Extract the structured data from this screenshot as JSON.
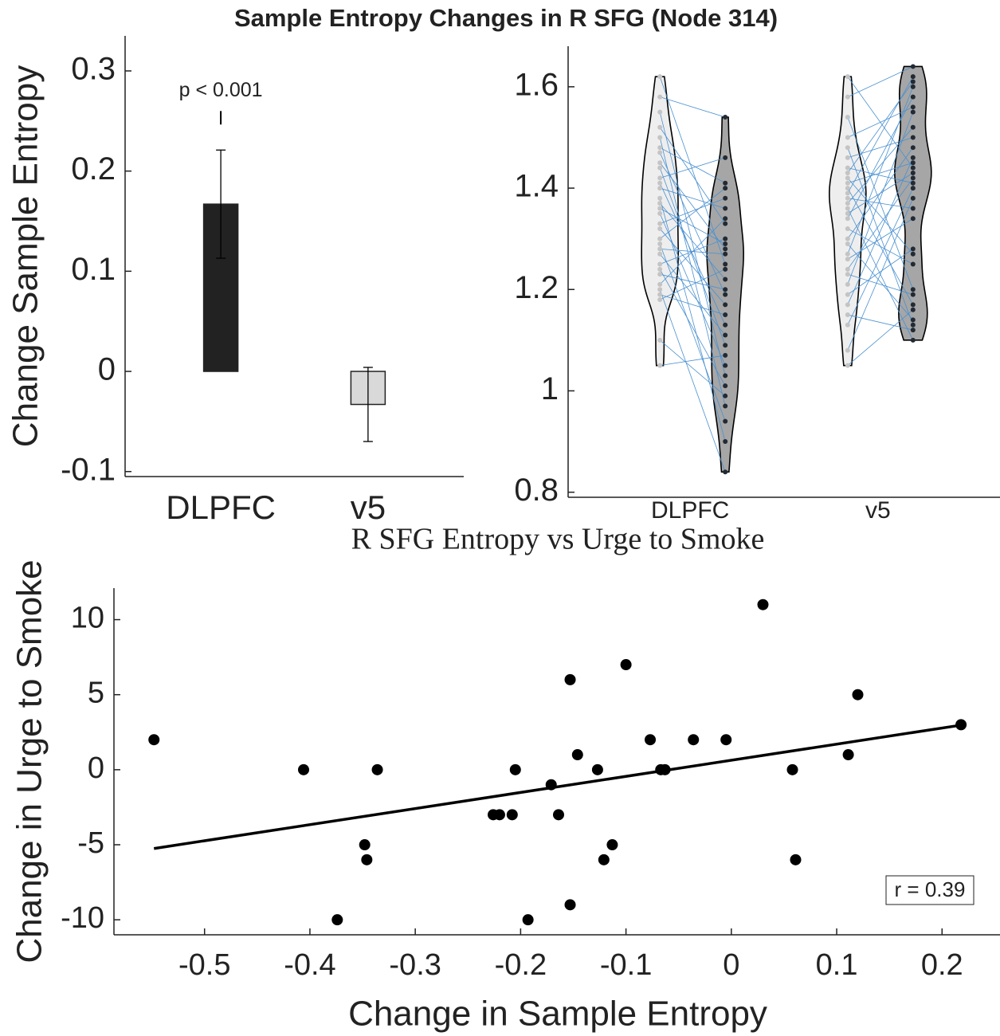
{
  "chart_data": [
    {
      "type": "bar",
      "title": "Sample Entropy Changes in R SFG (Node 314)",
      "ylabel": "Change Sample Entropy",
      "categories": [
        "DLPFC",
        "v5"
      ],
      "values": [
        0.167,
        -0.033
      ],
      "errors": [
        0.054,
        0.037
      ],
      "colors": [
        "#222222",
        "#d9d9d9"
      ],
      "annotation": "p < 0.001",
      "ylim": [
        -0.105,
        0.335
      ],
      "yticks": [
        0.3,
        0.2,
        0.1,
        0,
        -0.1
      ]
    },
    {
      "type": "violin",
      "categories": [
        "DLPFC",
        "v5"
      ],
      "series": [
        {
          "color": "#eeeeee",
          "point_color": "#c4c4c4",
          "values": [
            [
              1.62,
              1.58,
              1.55,
              1.52,
              1.5,
              1.48,
              1.47,
              1.45,
              1.44,
              1.42,
              1.41,
              1.4,
              1.38,
              1.37,
              1.36,
              1.35,
              1.33,
              1.32,
              1.3,
              1.29,
              1.28,
              1.27,
              1.25,
              1.24,
              1.23,
              1.21,
              1.2,
              1.19,
              1.18,
              1.1,
              1.05
            ],
            [
              1.62,
              1.58,
              1.54,
              1.5,
              1.48,
              1.46,
              1.44,
              1.43,
              1.42,
              1.41,
              1.4,
              1.39,
              1.38,
              1.37,
              1.36,
              1.35,
              1.34,
              1.32,
              1.3,
              1.29,
              1.27,
              1.26,
              1.24,
              1.23,
              1.21,
              1.19,
              1.17,
              1.15,
              1.13,
              1.08,
              1.05
            ]
          ]
        },
        {
          "color": "#a6a6a6",
          "point_color": "#222a33",
          "values": [
            [
              1.25,
              1.54,
              1.03,
              1.33,
              0.97,
              1.41,
              1.19,
              1.28,
              1.09,
              1.46,
              1.13,
              1.36,
              0.9,
              1.22,
              1.29,
              1.05,
              1.38,
              1.17,
              1.4,
              0.94,
              1.27,
              1.11,
              1.3,
              1.01,
              1.2,
              1.34,
              0.84,
              1.15,
              1.24,
              0.99,
              1.07
            ],
            [
              1.44,
              1.64,
              1.2,
              1.56,
              1.13,
              1.5,
              1.41,
              1.61,
              1.27,
              1.45,
              1.17,
              1.62,
              1.36,
              1.52,
              1.1,
              1.43,
              1.58,
              1.25,
              1.48,
              1.14,
              1.6,
              1.34,
              1.42,
              1.19,
              1.55,
              1.28,
              1.46,
              1.12,
              1.4,
              1.38,
              1.16
            ]
          ]
        }
      ],
      "line_color": "#4a90d0",
      "ylim": [
        0.79,
        1.68
      ],
      "yticks": [
        1.6,
        1.4,
        1.2,
        1,
        0.8
      ]
    },
    {
      "type": "scatter",
      "title": "R SFG Entropy vs Urge to Smoke",
      "xlabel": "Change in Sample Entropy",
      "ylabel": "Change in Urge to Smoke",
      "x": [
        -0.548,
        -0.406,
        -0.336,
        -0.348,
        -0.346,
        -0.374,
        -0.226,
        -0.22,
        -0.208,
        -0.205,
        -0.193,
        -0.171,
        -0.164,
        -0.153,
        -0.153,
        -0.146,
        -0.127,
        -0.121,
        -0.113,
        -0.1,
        -0.077,
        -0.067,
        -0.063,
        -0.036,
        -0.005,
        0.03,
        0.058,
        0.061,
        0.111,
        0.12,
        0.218
      ],
      "values": [
        2,
        0,
        0,
        -5,
        -6,
        -10,
        -3,
        -3,
        -3,
        0,
        -10,
        -1,
        -3,
        6,
        -9,
        1,
        0,
        -6,
        -5,
        7,
        2,
        0,
        0,
        2,
        2,
        11,
        0,
        -6,
        1,
        5,
        3
      ],
      "color": "#000000",
      "fit": {
        "x": [
          -0.548,
          0.218
        ],
        "values": [
          -5.25,
          2.97
        ]
      },
      "annotation": "r = 0.39",
      "xlim": [
        -0.586,
        0.255
      ],
      "ylim": [
        -11,
        12.1
      ],
      "xticks": [
        -0.5,
        -0.4,
        -0.3,
        -0.2,
        -0.1,
        0,
        0.1,
        0.2
      ],
      "yticks": [
        10,
        5,
        0,
        -5,
        -10
      ]
    }
  ]
}
